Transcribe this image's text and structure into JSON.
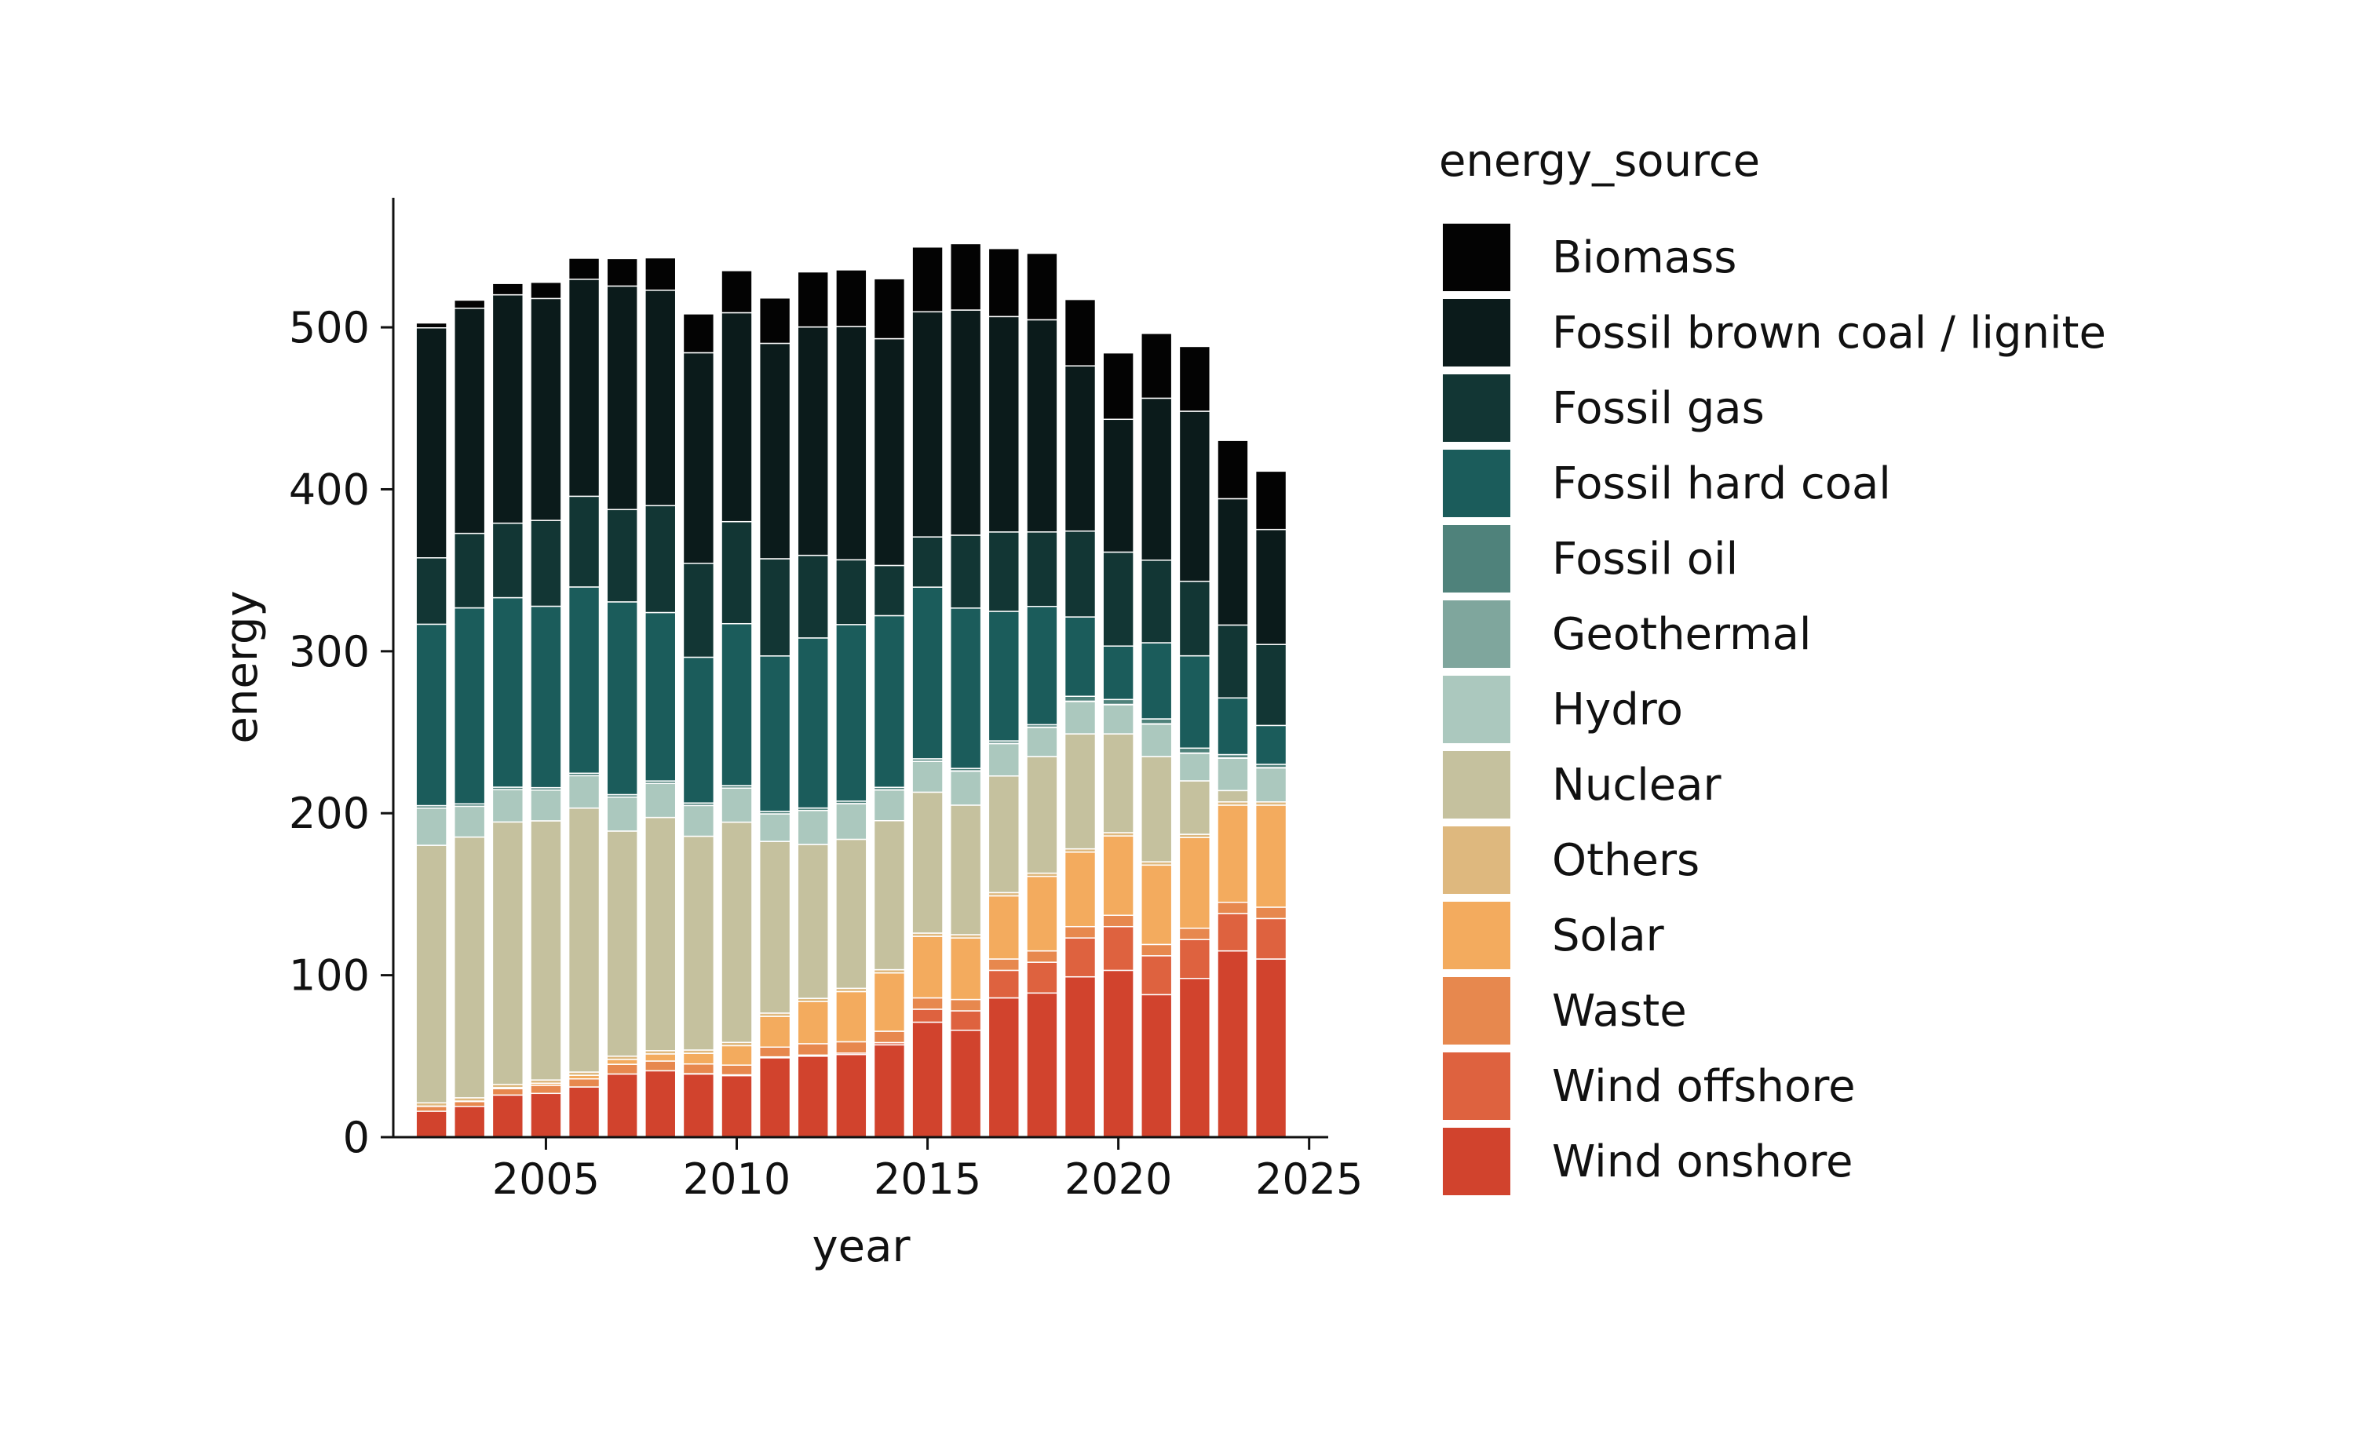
{
  "chart_data": {
    "type": "bar",
    "stacked": true,
    "title": "",
    "xlabel": "year",
    "ylabel": "energy",
    "xlim": [
      2001,
      2025.5
    ],
    "ylim": [
      0,
      580
    ],
    "x_ticks": [
      2005,
      2010,
      2015,
      2020,
      2025
    ],
    "y_ticks": [
      0,
      100,
      200,
      300,
      400,
      500
    ],
    "grid": false,
    "legend": {
      "title": "energy_source",
      "position": "right"
    },
    "x": [
      2002,
      2003,
      2004,
      2005,
      2006,
      2007,
      2008,
      2009,
      2010,
      2011,
      2012,
      2013,
      2014,
      2015,
      2016,
      2017,
      2018,
      2019,
      2020,
      2021,
      2022,
      2023,
      2024
    ],
    "series": [
      {
        "name": "Wind onshore",
        "color": "#d1432d",
        "values": [
          16,
          19,
          26,
          27,
          31,
          39,
          41,
          39,
          38,
          49,
          50,
          51,
          57,
          71,
          66,
          86,
          89,
          99,
          103,
          88,
          98,
          115,
          110
        ]
      },
      {
        "name": "Wind offshore",
        "color": "#de623f",
        "values": [
          0,
          0,
          0,
          0,
          0,
          0,
          0,
          0.2,
          0.5,
          0.6,
          0.7,
          0.9,
          1.4,
          8,
          12,
          17,
          19,
          24,
          27,
          24,
          24,
          23,
          25
        ]
      },
      {
        "name": "Waste",
        "color": "#e7884e",
        "values": [
          3,
          3,
          4,
          5,
          5,
          6,
          6,
          6,
          6,
          6,
          7,
          7,
          7,
          7,
          7,
          7,
          7,
          7,
          7,
          7,
          7,
          7,
          7
        ]
      },
      {
        "name": "Solar",
        "color": "#f3ab5e",
        "values": [
          0.2,
          0.3,
          0.6,
          1.3,
          2.2,
          3,
          4.4,
          6.6,
          12,
          19,
          26,
          31,
          36,
          38,
          38,
          39,
          46,
          46,
          49,
          49,
          56,
          60,
          63
        ]
      },
      {
        "name": "Others",
        "color": "#deb87e",
        "values": [
          2,
          2,
          2,
          2,
          2,
          2,
          2,
          2,
          2,
          2,
          2,
          2,
          2,
          2,
          2,
          2,
          2,
          2,
          2,
          2,
          2,
          2,
          2
        ]
      },
      {
        "name": "Nuclear",
        "color": "#c5c19e",
        "values": [
          159,
          161,
          162,
          160,
          163,
          139,
          144,
          132,
          136,
          106,
          95,
          92,
          92,
          87,
          80,
          72,
          72,
          71,
          61,
          65,
          33,
          7,
          0
        ]
      },
      {
        "name": "Hydro",
        "color": "#abc8be",
        "values": [
          23,
          19,
          20,
          19,
          20,
          21,
          21,
          19,
          21,
          17,
          21,
          22,
          19,
          19,
          21,
          20,
          18,
          20,
          18,
          20,
          17,
          20,
          21
        ]
      },
      {
        "name": "Geothermal",
        "color": "#7fa69d",
        "values": [
          0,
          0,
          0,
          0,
          0,
          0,
          0.02,
          0.02,
          0.03,
          0.02,
          0.03,
          0.08,
          0.1,
          0.1,
          0.18,
          0.16,
          0.18,
          0.2,
          0.23,
          0.25,
          0.2,
          0.2,
          0.2
        ]
      },
      {
        "name": "Fossil oil",
        "color": "#4f827b",
        "values": [
          1.5,
          1.5,
          1.5,
          1.5,
          1.5,
          1.5,
          1.5,
          1.5,
          1.5,
          1.5,
          1.5,
          1.5,
          1.5,
          1.5,
          1.5,
          1.5,
          1.5,
          3,
          3,
          3,
          3,
          2,
          2
        ]
      },
      {
        "name": "Fossil hard coal",
        "color": "#1b5c5b",
        "values": [
          112,
          121,
          117,
          112,
          115,
          119,
          104,
          90,
          100,
          96,
          105,
          109,
          106,
          106,
          99,
          80,
          73,
          49,
          33,
          47,
          57,
          35,
          24
        ]
      },
      {
        "name": "Fossil gas",
        "color": "#123634",
        "values": [
          41,
          46,
          46,
          53,
          56,
          57,
          66,
          58,
          63,
          60,
          51,
          40,
          31,
          31,
          45,
          49,
          46,
          53,
          58,
          51,
          46,
          45,
          50
        ]
      },
      {
        "name": "Fossil brown coal / lignite",
        "color": "#0b1b1b",
        "values": [
          142,
          139,
          141,
          137,
          134,
          138,
          133,
          130,
          129,
          133,
          141,
          144,
          140,
          139,
          139,
          133,
          131,
          102,
          82,
          100,
          105,
          78,
          71
        ]
      },
      {
        "name": "Biomass",
        "color": "#030303",
        "values": [
          3,
          5,
          7,
          10,
          13,
          17,
          20,
          24,
          26,
          28,
          34,
          35,
          37,
          40,
          41,
          42,
          41,
          41,
          41,
          40,
          40,
          36,
          36
        ]
      }
    ],
    "legend_order": [
      "Biomass",
      "Fossil brown coal / lignite",
      "Fossil gas",
      "Fossil hard coal",
      "Fossil oil",
      "Geothermal",
      "Hydro",
      "Nuclear",
      "Others",
      "Solar",
      "Waste",
      "Wind offshore",
      "Wind onshore"
    ]
  }
}
